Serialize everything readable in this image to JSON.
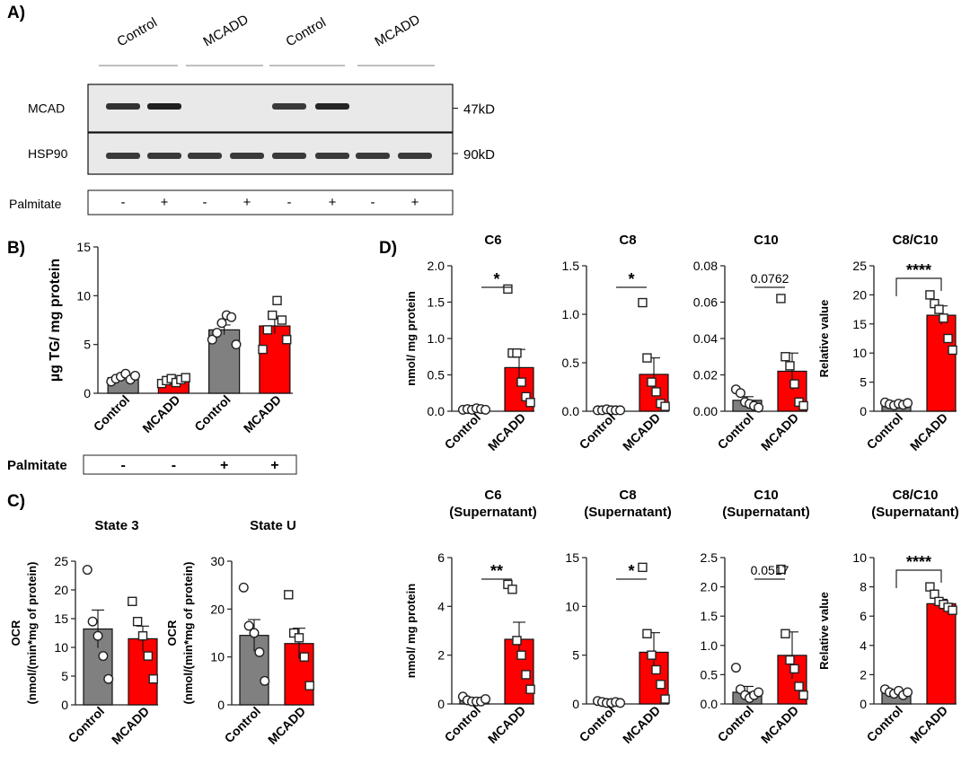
{
  "panel_labels": {
    "a": "A)",
    "b": "B)",
    "c": "C)",
    "d": "D)"
  },
  "blot": {
    "lanes": [
      "Control",
      "MCADD",
      "Control",
      "MCADD"
    ],
    "rows": [
      {
        "label": "MCAD",
        "size": "47kD",
        "band_intensity": [
          0.85,
          1.0,
          0,
          0,
          0.8,
          0.95,
          0,
          0
        ]
      },
      {
        "label": "HSP90",
        "size": "90kD",
        "band_intensity": [
          0.8,
          0.8,
          0.8,
          0.8,
          0.8,
          0.8,
          0.8,
          0.8
        ]
      }
    ],
    "palmitate_label": "Palmitate",
    "palmitate": [
      "-",
      "+",
      "-",
      "+",
      "-",
      "+",
      "-",
      "+"
    ]
  },
  "colors": {
    "control": "#808080",
    "mcadd": "#ff0000",
    "mcadd_dark": "#c00000"
  },
  "chart_data": [
    {
      "id": "B",
      "type": "bar",
      "title": "",
      "ylabel": "µg TG/ mg protein",
      "ylim": [
        0,
        15
      ],
      "yticks": [
        0,
        5,
        10,
        15
      ],
      "categories": [
        "Control",
        "MCADD",
        "Control",
        "MCADD"
      ],
      "values": [
        1.6,
        1.3,
        6.5,
        6.9
      ],
      "errors": [
        0.3,
        0.2,
        0.5,
        0.8
      ],
      "points": [
        [
          1.2,
          1.5,
          1.7,
          2.0,
          1.4,
          1.8
        ],
        [
          1.0,
          1.3,
          1.5,
          1.1,
          1.4,
          1.6
        ],
        [
          5.5,
          6.2,
          7.2,
          8.0,
          7.8,
          5.0
        ],
        [
          4.5,
          6.5,
          8.0,
          9.5,
          7.5,
          5.5
        ]
      ],
      "palmitate_label": "Palmitate",
      "palmitate": [
        "-",
        "-",
        "+",
        "+"
      ]
    },
    {
      "id": "C1",
      "type": "bar",
      "title": "State 3",
      "ylabel": [
        "OCR",
        "(nmol/(min*mg of protein)"
      ],
      "ylim": [
        0,
        25
      ],
      "yticks": [
        0,
        5,
        10,
        15,
        20,
        25
      ],
      "categories": [
        "Control",
        "MCADD"
      ],
      "values": [
        13.2,
        11.5
      ],
      "errors": [
        3.3,
        2.2
      ],
      "points": [
        [
          23.5,
          14.5,
          12.0,
          8.5,
          4.5
        ],
        [
          18.0,
          14.5,
          12.0,
          8.5,
          4.5
        ]
      ]
    },
    {
      "id": "C2",
      "type": "bar",
      "title": "State U",
      "ylabel": [
        "OCR",
        "(nmol/(min*mg of protein)"
      ],
      "ylim": [
        0,
        30
      ],
      "yticks": [
        0,
        10,
        20,
        30
      ],
      "categories": [
        "Control",
        "MCADD"
      ],
      "values": [
        14.5,
        12.8
      ],
      "errors": [
        3.3,
        3.2
      ],
      "points": [
        [
          24.5,
          16.5,
          15.0,
          11.0,
          5.0
        ],
        [
          23.0,
          15.0,
          14.0,
          10.0,
          4.0
        ]
      ]
    },
    {
      "id": "D1",
      "type": "bar",
      "title": "C6",
      "ylabel": "nmol/ mg protein",
      "ylim": [
        0,
        2.0
      ],
      "yticks": [
        0.0,
        0.5,
        1.0,
        1.5,
        2.0
      ],
      "tick_decimals": 1,
      "categories": [
        "Control",
        "MCADD"
      ],
      "values": [
        0.03,
        0.6
      ],
      "errors": [
        0.01,
        0.25
      ],
      "points": [
        [
          0.02,
          0.03,
          0.02,
          0.04,
          0.03,
          0.02
        ],
        [
          1.68,
          0.8,
          0.8,
          0.4,
          0.2,
          0.12
        ]
      ],
      "significance": "*"
    },
    {
      "id": "D2",
      "type": "bar",
      "title": "C8",
      "ylabel": "",
      "ylim": [
        0,
        1.5
      ],
      "yticks": [
        0.0,
        0.5,
        1.0,
        1.5
      ],
      "tick_decimals": 1,
      "categories": [
        "Control",
        "MCADD"
      ],
      "values": [
        0.01,
        0.38
      ],
      "errors": [
        0.005,
        0.17
      ],
      "points": [
        [
          0.01,
          0.01,
          0.02,
          0.01,
          0.01,
          0.01
        ],
        [
          1.12,
          0.55,
          0.3,
          0.2,
          0.08,
          0.05
        ]
      ],
      "significance": "*"
    },
    {
      "id": "D3",
      "type": "bar",
      "title": "C10",
      "ylabel": "",
      "ylim": [
        0,
        0.08
      ],
      "yticks": [
        0.0,
        0.02,
        0.04,
        0.06,
        0.08
      ],
      "tick_decimals": 2,
      "categories": [
        "Control",
        "MCADD"
      ],
      "values": [
        0.006,
        0.022
      ],
      "errors": [
        0.002,
        0.01
      ],
      "points": [
        [
          0.012,
          0.01,
          0.005,
          0.004,
          0.003,
          0.002
        ],
        [
          0.062,
          0.03,
          0.025,
          0.015,
          0.005,
          0.003
        ]
      ],
      "significance": "0.0762"
    },
    {
      "id": "D4",
      "type": "bar",
      "title": "C8/C10",
      "ylabel": "Relative value",
      "ylim": [
        0,
        25
      ],
      "yticks": [
        0,
        5,
        10,
        15,
        20,
        25
      ],
      "categories": [
        "Control",
        "MCADD"
      ],
      "values": [
        1.2,
        16.5
      ],
      "errors": [
        0.2,
        1.6
      ],
      "points": [
        [
          1.5,
          1.2,
          1.0,
          1.3,
          1.1,
          1.4
        ],
        [
          20.0,
          18.5,
          17.5,
          16.0,
          12.5,
          10.5
        ]
      ],
      "significance": "****",
      "bracket": true
    },
    {
      "id": "D5",
      "type": "bar",
      "title": [
        "C6",
        "(Supernatant)"
      ],
      "ylabel": "nmol/ mg protein",
      "ylim": [
        0,
        6
      ],
      "yticks": [
        0,
        2,
        4,
        6
      ],
      "categories": [
        "Control",
        "MCADD"
      ],
      "values": [
        0.15,
        2.65
      ],
      "errors": [
        0.05,
        0.7
      ],
      "points": [
        [
          0.3,
          0.15,
          0.1,
          0.1,
          0.1,
          0.2
        ],
        [
          4.9,
          4.7,
          2.6,
          2.0,
          1.2,
          0.6
        ]
      ],
      "significance": "**"
    },
    {
      "id": "D6",
      "type": "bar",
      "title": [
        "C8",
        "(Supernatant)"
      ],
      "ylabel": "",
      "ylim": [
        0,
        15
      ],
      "yticks": [
        0,
        5,
        10,
        15
      ],
      "categories": [
        "Control",
        "MCADD"
      ],
      "values": [
        0.2,
        5.3
      ],
      "errors": [
        0.1,
        2.0
      ],
      "points": [
        [
          0.3,
          0.2,
          0.1,
          0.1,
          0.2,
          0.1
        ],
        [
          14.0,
          7.2,
          5.0,
          3.5,
          2.0,
          0.5
        ]
      ],
      "significance": "*"
    },
    {
      "id": "D7",
      "type": "bar",
      "title": [
        "C10",
        "(Supernatant)"
      ],
      "ylabel": "",
      "ylim": [
        0,
        2.5
      ],
      "yticks": [
        0.0,
        0.5,
        1.0,
        1.5,
        2.0,
        2.5
      ],
      "tick_decimals": 1,
      "categories": [
        "Control",
        "MCADD"
      ],
      "values": [
        0.2,
        0.83
      ],
      "errors": [
        0.1,
        0.4
      ],
      "points": [
        [
          0.62,
          0.25,
          0.15,
          0.1,
          0.15,
          0.2
        ],
        [
          2.3,
          1.2,
          0.75,
          0.6,
          0.3,
          0.15
        ]
      ],
      "significance": "0.0517"
    },
    {
      "id": "D8",
      "type": "bar",
      "title": [
        "C8/C10",
        "(Supernatant)"
      ],
      "ylabel": "Relative value",
      "ylim": [
        0,
        10
      ],
      "yticks": [
        0,
        2,
        4,
        6,
        8,
        10
      ],
      "categories": [
        "Control",
        "MCADD"
      ],
      "values": [
        0.8,
        6.85
      ],
      "errors": [
        0.1,
        0.3
      ],
      "points": [
        [
          1.0,
          0.8,
          0.7,
          0.9,
          0.6,
          0.8
        ],
        [
          8.0,
          7.5,
          7.0,
          6.8,
          6.6,
          6.4
        ]
      ],
      "significance": "****",
      "bracket": true
    }
  ]
}
